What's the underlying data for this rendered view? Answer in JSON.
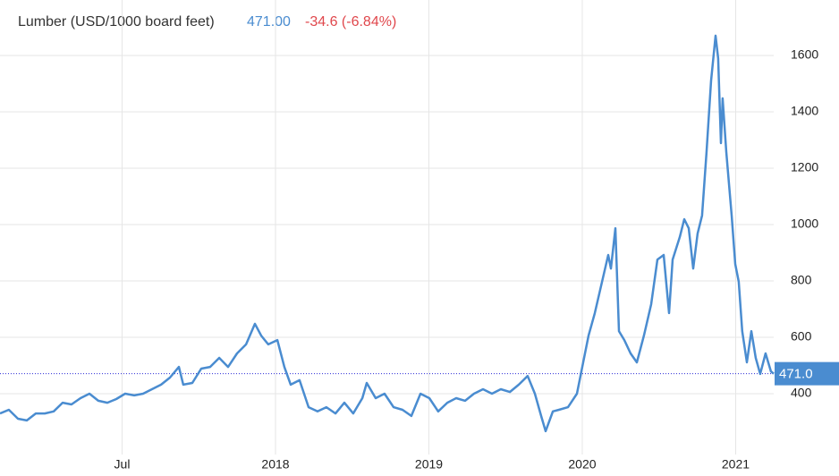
{
  "chart_data": {
    "type": "line",
    "title": "Lumber (USD/1000 board feet)",
    "price": "471.00",
    "change": "-34.6 (-6.84%)",
    "last_label": "471.0",
    "x": [
      2016.204,
      2016.262,
      2016.321,
      2016.379,
      2016.437,
      2016.496,
      2016.554,
      2016.612,
      2016.67,
      2016.729,
      2016.787,
      2016.845,
      2016.904,
      2016.962,
      2017.02,
      2017.079,
      2017.137,
      2017.195,
      2017.254,
      2017.312,
      2017.37,
      2017.399,
      2017.458,
      2017.516,
      2017.574,
      2017.633,
      2017.691,
      2017.749,
      2017.808,
      2017.866,
      2017.907,
      2017.953,
      2018.012,
      2018.058,
      2018.099,
      2018.157,
      2018.216,
      2018.274,
      2018.332,
      2018.391,
      2018.449,
      2018.507,
      2018.566,
      2018.595,
      2018.653,
      2018.711,
      2018.77,
      2018.828,
      2018.886,
      2018.945,
      2019.003,
      2019.061,
      2019.12,
      2019.178,
      2019.236,
      2019.294,
      2019.353,
      2019.411,
      2019.469,
      2019.528,
      2019.586,
      2019.644,
      2019.691,
      2019.732,
      2019.761,
      2019.808,
      2019.848,
      2019.907,
      2019.965,
      2020.006,
      2020.041,
      2020.082,
      2020.122,
      2020.169,
      2020.187,
      2020.216,
      2020.239,
      2020.274,
      2020.315,
      2020.356,
      2020.402,
      2020.449,
      2020.49,
      2020.531,
      2020.566,
      2020.589,
      2020.636,
      2020.665,
      2020.694,
      2020.723,
      2020.752,
      2020.781,
      2020.81,
      2020.84,
      2020.869,
      2020.886,
      2020.904,
      2020.915,
      2020.939,
      2020.974,
      2020.997,
      2021.02,
      2021.043,
      2021.073,
      2021.102,
      2021.131,
      2021.16,
      2021.195,
      2021.23,
      2021.248
    ],
    "series": [
      {
        "name": "Lumber",
        "color": "#4a8cd0",
        "values": [
          330,
          343,
          311,
          305,
          330,
          330,
          337,
          368,
          362,
          384,
          400,
          375,
          368,
          381,
          400,
          394,
          400,
          416,
          432,
          457,
          495,
          432,
          438,
          489,
          495,
          527,
          495,
          543,
          575,
          648,
          606,
          575,
          590,
          495,
          432,
          448,
          352,
          337,
          352,
          330,
          368,
          330,
          384,
          438,
          384,
          400,
          352,
          343,
          321,
          400,
          384,
          337,
          368,
          384,
          375,
          400,
          416,
          400,
          416,
          406,
          432,
          463,
          400,
          321,
          267,
          337,
          343,
          352,
          400,
          511,
          606,
          686,
          781,
          892,
          844,
          987,
          622,
          590,
          543,
          511,
          606,
          717,
          876,
          892,
          686,
          876,
          956,
          1019,
          987,
          844,
          968,
          1032,
          1257,
          1511,
          1670,
          1590,
          1289,
          1448,
          1257,
          1032,
          860,
          797,
          622,
          511,
          622,
          527,
          470,
          543,
          479,
          471
        ]
      }
    ],
    "xlim": [
      2016.204,
      2021.248
    ],
    "xticks": [
      {
        "value": 2017,
        "label": "Jul"
      },
      2018,
      2019,
      2020,
      2021
    ],
    "ylim": [
      200,
      1700
    ],
    "yticks": [
      400,
      600,
      800,
      1000,
      1200,
      1400,
      1600
    ],
    "grid": true
  }
}
